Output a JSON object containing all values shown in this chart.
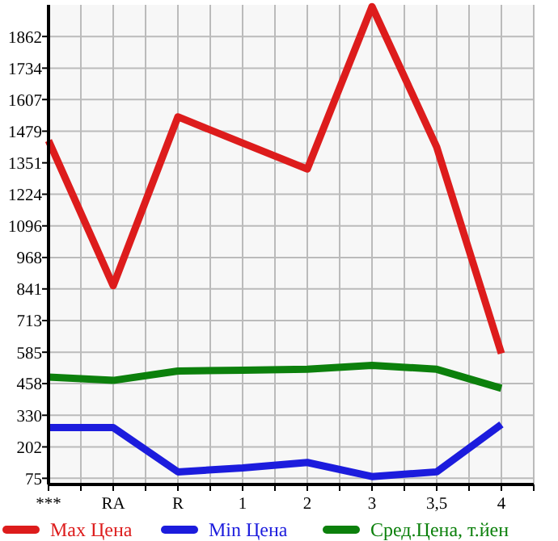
{
  "chart_data": {
    "type": "line",
    "categories": [
      "***",
      "RA",
      "R",
      "1",
      "2",
      "3",
      "3,5",
      "4"
    ],
    "series": [
      {
        "name": "Max Цена",
        "color": "#dd1c1c",
        "values": [
          1441,
          854,
          1537,
          1431,
          1326,
          1983,
          1415,
          580
        ]
      },
      {
        "name": "Min Цена",
        "color": "#1c1cdd",
        "values": [
          280,
          280,
          101,
          117,
          139,
          82,
          101,
          293
        ]
      },
      {
        "name": "Сред.Цена, т.йен",
        "color": "#0c800c",
        "values": [
          484,
          471,
          509,
          512,
          516,
          532,
          516,
          439
        ]
      }
    ],
    "ylim": [
      50,
      1990
    ],
    "yticks": [
      75,
      202,
      330,
      458,
      585,
      713,
      841,
      968,
      1096,
      1224,
      1351,
      1479,
      1607,
      1734,
      1862
    ],
    "grid": true,
    "legend": "bottom",
    "marker": "none",
    "line_style": "solid"
  }
}
